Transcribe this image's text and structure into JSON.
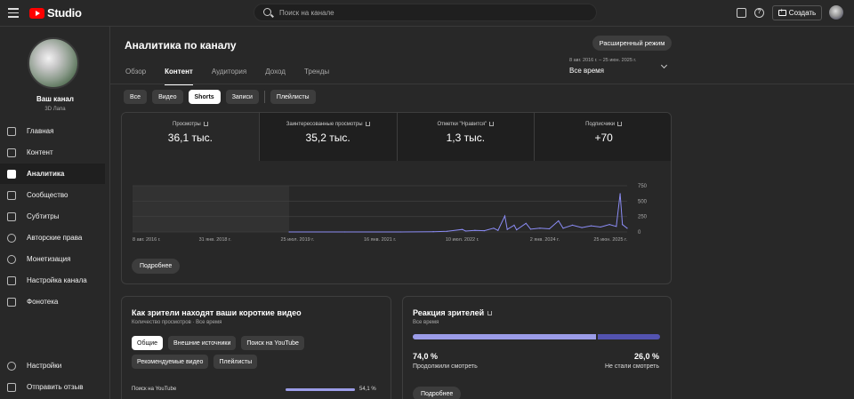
{
  "header": {
    "logo_text": "Studio",
    "search_placeholder": "Поиск на канале",
    "create_label": "Создать"
  },
  "sidebar": {
    "channel_name": "Ваш канал",
    "channel_handle": "3D Лапа",
    "items": [
      {
        "label": "Главная",
        "icon": "dashboard-icon"
      },
      {
        "label": "Контент",
        "icon": "content-icon"
      },
      {
        "label": "Аналитика",
        "icon": "analytics-icon",
        "active": true
      },
      {
        "label": "Сообщество",
        "icon": "community-icon"
      },
      {
        "label": "Субтитры",
        "icon": "subtitles-icon"
      },
      {
        "label": "Авторские права",
        "icon": "copyright-icon"
      },
      {
        "label": "Монетизация",
        "icon": "monetization-icon"
      },
      {
        "label": "Настройка канала",
        "icon": "customization-icon"
      },
      {
        "label": "Фонотека",
        "icon": "audio-library-icon"
      }
    ],
    "bottom_items": [
      {
        "label": "Настройки",
        "icon": "gear-icon"
      },
      {
        "label": "Отправить отзыв",
        "icon": "feedback-icon"
      }
    ]
  },
  "main": {
    "title": "Аналитика по каналу",
    "advanced_mode_label": "Расширенный режим",
    "tabs": [
      "Обзор",
      "Контент",
      "Аудитория",
      "Доход",
      "Тренды"
    ],
    "active_tab": "Контент",
    "date_range": "8 авг. 2016 г. – 25 июн. 2025 г.",
    "date_preset": "Все время",
    "content_chips": [
      "Все",
      "Видео",
      "Shorts",
      "Записи",
      "Плейлисты"
    ],
    "active_chip": "Shorts"
  },
  "metrics": [
    {
      "label": "Просмотры",
      "value": "36,1 тыс."
    },
    {
      "label": "Заинтересованные просмотры",
      "value": "35,2 тыс."
    },
    {
      "label": "Отметки \"Нравится\"",
      "value": "1,3 тыс."
    },
    {
      "label": "Подписчики",
      "value": "+70"
    }
  ],
  "chart_data": {
    "type": "line",
    "x_tick_labels": [
      "8 авг. 2016 г.",
      "31 янв. 2018 г.",
      "25 июл. 2019 г.",
      "16 янв. 2021 г.",
      "10 июл. 2022 г.",
      "2 янв. 2024 г.",
      "25 июн. 2025 г."
    ],
    "y_ticks": [
      0,
      250,
      500,
      750
    ],
    "ylim": [
      0,
      750
    ],
    "grid": true,
    "shaded_range_until": "2019-06-01",
    "series": [
      {
        "color": "#8b8cf5",
        "points": [
          [
            "2019-06-01",
            0
          ],
          [
            "2020-06-01",
            0
          ],
          [
            "2021-06-01",
            0
          ],
          [
            "2022-01-01",
            5
          ],
          [
            "2022-04-01",
            10
          ],
          [
            "2022-07-10",
            40
          ],
          [
            "2022-08-01",
            15
          ],
          [
            "2022-10-01",
            25
          ],
          [
            "2022-12-01",
            20
          ],
          [
            "2023-02-01",
            60
          ],
          [
            "2023-03-01",
            25
          ],
          [
            "2023-04-15",
            260
          ],
          [
            "2023-05-01",
            40
          ],
          [
            "2023-06-15",
            110
          ],
          [
            "2023-07-01",
            35
          ],
          [
            "2023-09-01",
            140
          ],
          [
            "2023-10-01",
            45
          ],
          [
            "2023-12-01",
            60
          ],
          [
            "2024-02-01",
            50
          ],
          [
            "2024-04-01",
            180
          ],
          [
            "2024-05-01",
            60
          ],
          [
            "2024-07-01",
            110
          ],
          [
            "2024-09-01",
            70
          ],
          [
            "2024-11-01",
            100
          ],
          [
            "2025-01-01",
            80
          ],
          [
            "2025-03-01",
            120
          ],
          [
            "2025-04-15",
            90
          ],
          [
            "2025-05-10",
            620
          ],
          [
            "2025-05-25",
            120
          ],
          [
            "2025-06-25",
            60
          ]
        ]
      }
    ]
  },
  "metrics_more_label": "Подробнее",
  "sources_card": {
    "title": "Как зрители находят ваши короткие видео",
    "subtitle": "Количество просмотров · Все время",
    "chips": [
      "Общие",
      "Внешние источники",
      "Поиск на YouTube",
      "Рекомендуемые видео",
      "Плейлисты"
    ],
    "active_chip": "Общие",
    "rows": [
      {
        "name": "Поиск на YouTube",
        "percent_label": "54,1 %",
        "fraction": 0.995
      }
    ]
  },
  "reaction_card": {
    "title": "Реакция зрителей",
    "subtitle": "Все время",
    "continued_percent": "74,0 %",
    "continued_label": "Продолжили смотреть",
    "stopped_percent": "26,0 %",
    "stopped_label": "Не стали смотреть",
    "continued_fraction": 0.74,
    "more_label": "Подробнее"
  }
}
